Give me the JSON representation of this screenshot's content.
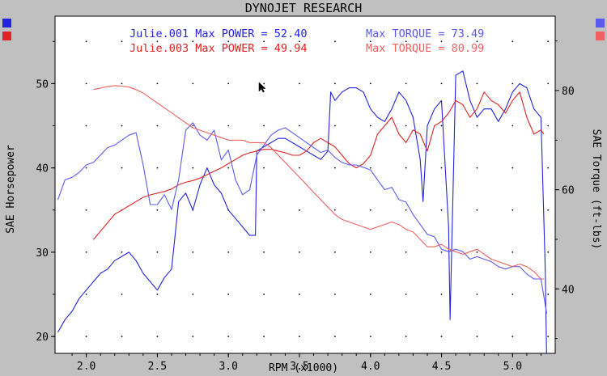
{
  "window": {
    "title": "DYNOJET RESEARCH"
  },
  "legend_swatches": {
    "left": [
      "#2323e0",
      "#e02323"
    ],
    "right": [
      "#5a5af0",
      "#f06060"
    ]
  },
  "chart_data": {
    "type": "line",
    "title": "DYNOJET RESEARCH",
    "xlabel": "RPM (x1000)",
    "ylabel_left": "SAE Horsepower",
    "ylabel_right": "SAE Torque (ft-lbs)",
    "xlim": [
      1.78,
      5.3
    ],
    "ylim_left": [
      18,
      58
    ],
    "ylim_right": [
      27,
      95
    ],
    "x_ticks": [
      "2.0",
      "2.5",
      "3.0",
      "3.5",
      "4.0",
      "4.5",
      "5.0"
    ],
    "y_ticks_left": [
      "20",
      "30",
      "40",
      "50"
    ],
    "y_ticks_right": [
      "40",
      "60",
      "80"
    ],
    "grid": true,
    "legend": [
      {
        "run": "Julie.001",
        "power_text": "Julie.001 Max POWER = 52.40",
        "torque_text": "Max TORQUE = 73.49",
        "power_color": "#2323e0",
        "torque_color": "#5a5af0"
      },
      {
        "run": "Julie.003",
        "power_text": "Julie.003 Max POWER = 49.94",
        "torque_text": "Max TORQUE = 80.99",
        "power_color": "#e02323",
        "torque_color": "#f06060"
      }
    ],
    "series": [
      {
        "name": "Julie.001 Max POWER = 52.40",
        "axis": "left",
        "color": "#2323e0",
        "x": [
          1.8,
          1.85,
          1.9,
          1.95,
          2.0,
          2.05,
          2.1,
          2.15,
          2.2,
          2.25,
          2.3,
          2.35,
          2.4,
          2.45,
          2.5,
          2.55,
          2.6,
          2.65,
          2.7,
          2.75,
          2.8,
          2.85,
          2.9,
          2.95,
          3.0,
          3.05,
          3.1,
          3.15,
          3.19,
          3.2,
          3.25,
          3.3,
          3.35,
          3.4,
          3.45,
          3.5,
          3.55,
          3.6,
          3.65,
          3.7,
          3.72,
          3.75,
          3.8,
          3.85,
          3.9,
          3.95,
          4.0,
          4.05,
          4.1,
          4.15,
          4.2,
          4.25,
          4.3,
          4.35,
          4.37,
          4.4,
          4.45,
          4.5,
          4.55,
          4.56,
          4.6,
          4.65,
          4.7,
          4.75,
          4.8,
          4.85,
          4.9,
          4.95,
          5.0,
          5.05,
          5.1,
          5.15,
          5.2,
          5.23,
          5.24
        ],
        "values": [
          20.5,
          22,
          23,
          24.5,
          25.5,
          26.5,
          27.5,
          28,
          29,
          29.5,
          30,
          29,
          27.5,
          26.5,
          25.5,
          27,
          28,
          36,
          37,
          35,
          38,
          40,
          38,
          37,
          35,
          34,
          33,
          32,
          32,
          42,
          42.5,
          43,
          43.5,
          43.5,
          43,
          42.5,
          42,
          41.5,
          41,
          42,
          49,
          48,
          49,
          49.5,
          49.5,
          49,
          47,
          46,
          45.5,
          47,
          49,
          48,
          46,
          41,
          36,
          45,
          47,
          48,
          33,
          22,
          51,
          51.5,
          48,
          46,
          47,
          47,
          45.5,
          47,
          49,
          50,
          49.5,
          47,
          46,
          28,
          17
        ]
      },
      {
        "name": "Julie.003 Max POWER = 49.94",
        "axis": "left",
        "color": "#e02323",
        "x": [
          2.05,
          2.1,
          2.15,
          2.2,
          2.25,
          2.3,
          2.35,
          2.4,
          2.45,
          2.5,
          2.55,
          2.6,
          2.65,
          2.7,
          2.75,
          2.8,
          2.85,
          2.9,
          2.95,
          3.0,
          3.05,
          3.1,
          3.15,
          3.2,
          3.25,
          3.3,
          3.35,
          3.4,
          3.45,
          3.5,
          3.55,
          3.6,
          3.65,
          3.7,
          3.75,
          3.8,
          3.85,
          3.9,
          3.95,
          4.0,
          4.05,
          4.1,
          4.15,
          4.2,
          4.25,
          4.3,
          4.35,
          4.4,
          4.45,
          4.5,
          4.55,
          4.6,
          4.65,
          4.7,
          4.75,
          4.8,
          4.85,
          4.9,
          4.95,
          5.0,
          5.05,
          5.1,
          5.15,
          5.2,
          5.22
        ],
        "values": [
          31.5,
          32.5,
          33.5,
          34.5,
          35,
          35.5,
          36,
          36.5,
          36.8,
          37,
          37.2,
          37.5,
          38,
          38.3,
          38.5,
          38.8,
          39.2,
          39.6,
          40,
          40.5,
          41,
          41.5,
          41.8,
          42,
          42.2,
          42.2,
          42,
          41.8,
          41.5,
          41.5,
          42,
          43,
          43.5,
          43,
          42.5,
          41.5,
          40.5,
          40,
          40.5,
          41.5,
          44,
          45,
          46,
          44,
          43,
          44.5,
          44,
          42,
          45,
          45.5,
          46.5,
          48,
          47.5,
          46,
          47,
          49,
          48,
          47.5,
          46.5,
          48,
          49,
          46,
          44,
          44.5,
          44
        ]
      },
      {
        "name": "Max TORQUE = 73.49",
        "axis": "right",
        "color": "#5a5af0",
        "x": [
          1.8,
          1.85,
          1.9,
          1.95,
          2.0,
          2.05,
          2.1,
          2.15,
          2.2,
          2.25,
          2.3,
          2.35,
          2.4,
          2.45,
          2.5,
          2.55,
          2.6,
          2.65,
          2.7,
          2.75,
          2.8,
          2.85,
          2.9,
          2.95,
          3.0,
          3.05,
          3.1,
          3.15,
          3.2,
          3.25,
          3.3,
          3.35,
          3.4,
          3.45,
          3.5,
          3.55,
          3.6,
          3.65,
          3.7,
          3.75,
          3.8,
          3.85,
          3.9,
          3.95,
          4.0,
          4.05,
          4.1,
          4.15,
          4.2,
          4.25,
          4.3,
          4.35,
          4.4,
          4.45,
          4.5,
          4.55,
          4.6,
          4.65,
          4.7,
          4.75,
          4.8,
          4.85,
          4.9,
          4.95,
          5.0,
          5.05,
          5.1,
          5.15,
          5.2,
          5.24
        ],
        "values": [
          58,
          62,
          62.5,
          63.5,
          65,
          65.5,
          67,
          68.5,
          69,
          70,
          71,
          71.5,
          65,
          57,
          57,
          59,
          56,
          62,
          72,
          73.5,
          71,
          70,
          72,
          66,
          68,
          62,
          59,
          60,
          67,
          69,
          71,
          72,
          72.5,
          71.5,
          70.5,
          69.5,
          68.5,
          67.5,
          68,
          66.5,
          65.5,
          65,
          65,
          64.5,
          64,
          62,
          60,
          60.5,
          58,
          57.5,
          55,
          53,
          51,
          50.5,
          48,
          47.5,
          48,
          47.5,
          46,
          46.5,
          46,
          45.5,
          44.5,
          44,
          44.5,
          44.5,
          43,
          42,
          42,
          35
        ]
      },
      {
        "name": "Max TORQUE = 80.99",
        "axis": "right",
        "color": "#f06060",
        "x": [
          2.05,
          2.1,
          2.15,
          2.2,
          2.25,
          2.3,
          2.35,
          2.4,
          2.45,
          2.5,
          2.55,
          2.6,
          2.65,
          2.7,
          2.75,
          2.8,
          2.85,
          2.9,
          2.95,
          3.0,
          3.05,
          3.1,
          3.15,
          3.2,
          3.25,
          3.3,
          3.35,
          3.4,
          3.45,
          3.5,
          3.55,
          3.6,
          3.65,
          3.7,
          3.75,
          3.8,
          3.85,
          3.9,
          3.95,
          4.0,
          4.05,
          4.1,
          4.15,
          4.2,
          4.25,
          4.3,
          4.35,
          4.4,
          4.45,
          4.5,
          4.55,
          4.6,
          4.65,
          4.7,
          4.75,
          4.8,
          4.85,
          4.9,
          4.95,
          5.0,
          5.05,
          5.1,
          5.15,
          5.2,
          5.22
        ],
        "values": [
          80.2,
          80.5,
          80.8,
          81,
          80.9,
          80.7,
          80.2,
          79.5,
          78.5,
          77.5,
          76.5,
          75.5,
          74.5,
          73.5,
          72.5,
          72,
          71.5,
          71,
          70.5,
          70,
          70,
          70,
          69.5,
          69.5,
          69.5,
          68.5,
          67,
          65.5,
          64,
          62.5,
          61,
          59.5,
          58,
          56.5,
          55,
          54,
          53.5,
          53,
          52.5,
          52,
          52.5,
          53,
          53.5,
          53,
          52,
          51.5,
          50,
          48.5,
          48.5,
          49,
          48,
          47.5,
          47,
          47.5,
          48,
          47,
          46,
          45.5,
          45,
          44.5,
          45,
          44.5,
          43.5,
          42,
          42
        ]
      }
    ]
  }
}
